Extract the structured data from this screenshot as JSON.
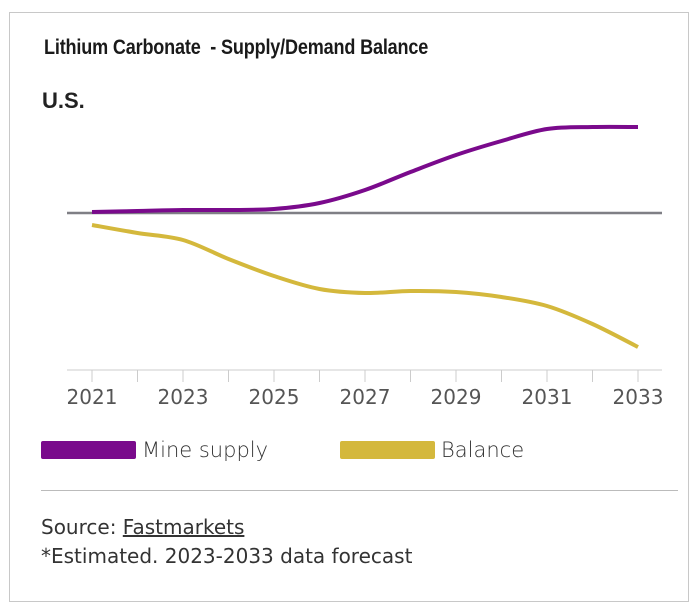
{
  "header": {
    "title": "Lithium Carbonate  - Supply/Demand Balance",
    "subtitle": "U.S."
  },
  "legend": {
    "items": [
      {
        "label": "Mine supply",
        "color": "#7a0a8c"
      },
      {
        "label": "Balance",
        "color": "#d4b83c"
      }
    ]
  },
  "footer": {
    "source_prefix": "Source: ",
    "source_link": "Fastmarkets",
    "note": "*Estimated. 2023-2033 data forecast"
  },
  "chart_data": {
    "type": "line",
    "title": "Lithium Carbonate  - Supply/Demand Balance",
    "subtitle": "U.S.",
    "xlabel": "",
    "ylabel": "",
    "x": [
      2021,
      2022,
      2023,
      2024,
      2025,
      2026,
      2027,
      2028,
      2029,
      2030,
      2031,
      2032,
      2033
    ],
    "tick_labels": [
      "2021",
      "2023",
      "2025",
      "2027",
      "2029",
      "2031",
      "2033"
    ],
    "y_units": "relative (unlabeled axis; zero baseline shown)",
    "ylim": [
      -155,
      100
    ],
    "series": [
      {
        "name": "Mine supply",
        "color": "#7a0a8c",
        "values": [
          1,
          2,
          3,
          3,
          4,
          10,
          23,
          41,
          58,
          72,
          84,
          86,
          86
        ]
      },
      {
        "name": "Balance",
        "color": "#d4b83c",
        "values": [
          -12,
          -20,
          -27,
          -46,
          -63,
          -76,
          -80,
          -78,
          -79,
          -84,
          -93,
          -111,
          -134
        ]
      }
    ],
    "zero_line": true,
    "grid": false,
    "legend_position": "bottom"
  }
}
